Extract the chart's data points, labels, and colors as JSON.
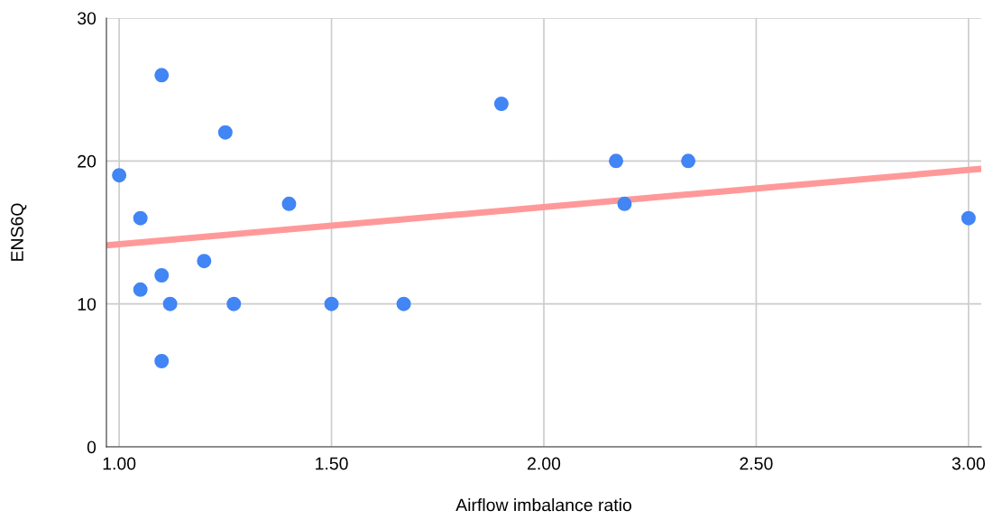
{
  "chart_data": {
    "type": "scatter",
    "xlabel": "Airflow imbalance ratio",
    "ylabel": "ENS6Q",
    "xlim": [
      0.97,
      3.03
    ],
    "ylim": [
      0,
      30
    ],
    "xticks": [
      {
        "value": 1.0,
        "label": "1.00"
      },
      {
        "value": 1.5,
        "label": "1.50"
      },
      {
        "value": 2.0,
        "label": "2.00"
      },
      {
        "value": 2.5,
        "label": "2.50"
      },
      {
        "value": 3.0,
        "label": "3.00"
      }
    ],
    "yticks": [
      0,
      10,
      20,
      30
    ],
    "grid": true,
    "series": [
      {
        "color": "#4285f4",
        "marker": "circle",
        "x": [
          1.0,
          1.1,
          1.05,
          1.05,
          1.1,
          1.12,
          1.1,
          1.2,
          1.25,
          1.27,
          1.4,
          1.5,
          1.67,
          1.9,
          2.17,
          2.19,
          2.34,
          3.0
        ],
        "values": [
          19,
          26,
          16,
          11,
          12,
          10,
          6,
          13,
          22,
          10,
          17,
          10,
          10,
          24,
          20,
          17,
          20,
          16
        ]
      },
      {
        "type": "line",
        "color": "#ff9999",
        "marker": "none",
        "x": [
          0.97,
          3.03
        ],
        "values": [
          14.1,
          19.45
        ]
      }
    ]
  }
}
